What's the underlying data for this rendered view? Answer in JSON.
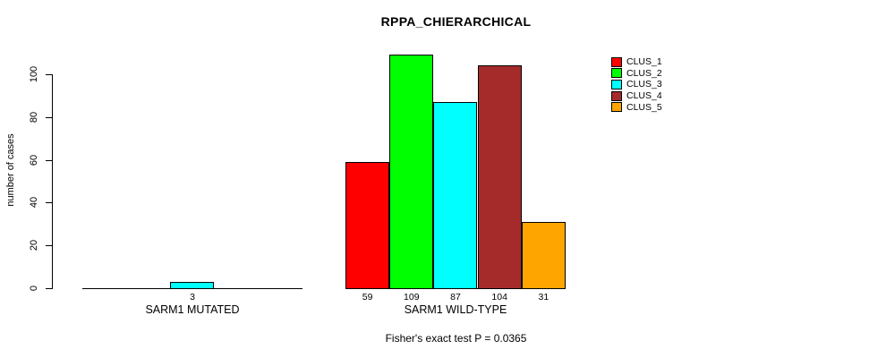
{
  "page": {
    "background": "#FFFFFF",
    "text_color": "#000000",
    "axis_color": "#000000"
  },
  "chart_data": {
    "type": "bar",
    "title": "RPPA_CHIERARCHICAL",
    "ylabel": "number of cases",
    "xlabel": "",
    "ylim": [
      0,
      110
    ],
    "yticks": [
      0,
      20,
      40,
      60,
      80,
      100
    ],
    "grid": false,
    "legend_position": "top-right",
    "categories": [
      "SARM1 MUTATED",
      "SARM1 WILD-TYPE"
    ],
    "series": [
      {
        "name": "CLUS_1",
        "color": "#FF0000",
        "values": [
          0,
          59
        ]
      },
      {
        "name": "CLUS_2",
        "color": "#00FF00",
        "values": [
          0,
          109
        ]
      },
      {
        "name": "CLUS_3",
        "color": "#00FFFF",
        "values": [
          3,
          87
        ]
      },
      {
        "name": "CLUS_4",
        "color": "#A52A2A",
        "values": [
          0,
          104
        ]
      },
      {
        "name": "CLUS_5",
        "color": "#FFA500",
        "values": [
          0,
          31
        ]
      }
    ],
    "bar_value_labels": {
      "SARM1 MUTATED": [
        "",
        "",
        "3",
        "",
        ""
      ],
      "SARM1 WILD-TYPE": [
        "59",
        "109",
        "87",
        "104",
        "31"
      ]
    },
    "annotation": "Fisher's exact test P = 0.0365"
  }
}
